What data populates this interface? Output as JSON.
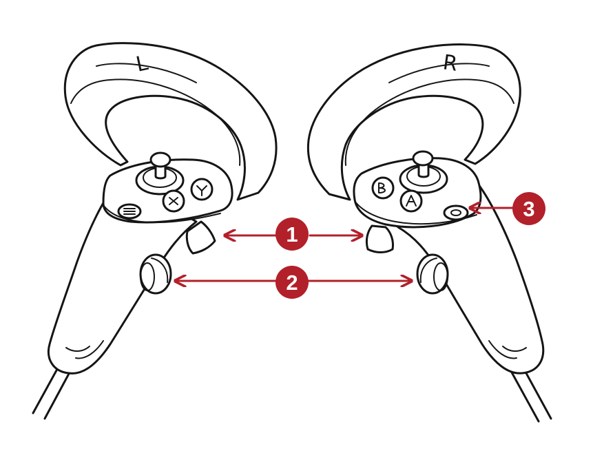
{
  "colors": {
    "ink": "#151515",
    "accent": "#b2202a",
    "badge_text": "#ffffff",
    "background": "#ffffff"
  },
  "controllers": {
    "left": {
      "label": "L"
    },
    "right": {
      "label": "R"
    }
  },
  "callouts": [
    {
      "number": "1"
    },
    {
      "number": "2"
    },
    {
      "number": "3"
    }
  ]
}
